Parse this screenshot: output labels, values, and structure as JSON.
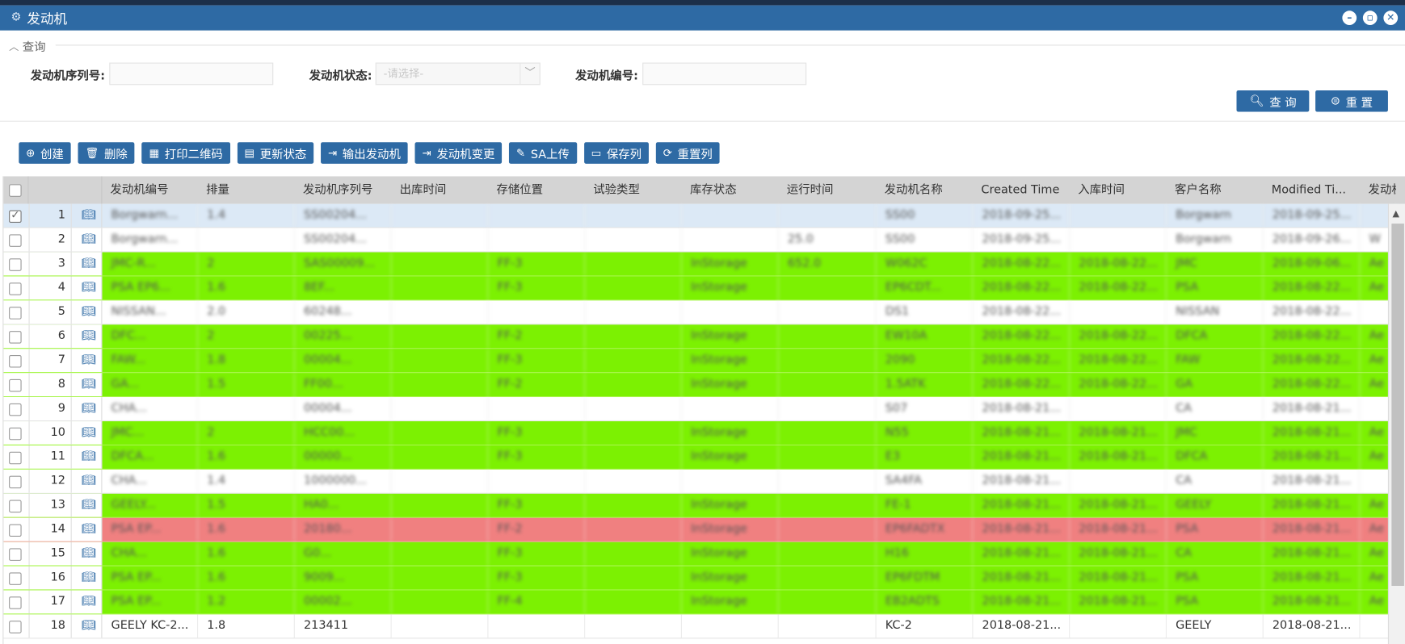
{
  "window": {
    "title": "发动机",
    "icons": [
      "engine-icon"
    ],
    "controls": [
      "minimize",
      "maximize",
      "close"
    ]
  },
  "query": {
    "section_label": "查询",
    "fields": {
      "serial_label": "发动机序列号:",
      "status_label": "发动机状态:",
      "status_placeholder": "-请选择-",
      "number_label": "发动机编号:"
    },
    "search_label": "查 询",
    "reset_label": "重 置"
  },
  "toolbar": {
    "create": "创建",
    "delete": "删除",
    "print_qr": "打印二维码",
    "update_status": "更新状态",
    "export": "输出发动机",
    "change": "发动机变更",
    "sa_upload": "SA上传",
    "save_cols": "保存列",
    "reset_cols": "重置列"
  },
  "grid": {
    "columns": [
      "发动机编号",
      "排量",
      "发动机序列号",
      "出库时间",
      "存储位置",
      "试验类型",
      "库存状态",
      "运行时间",
      "发动机名称",
      "Created Time",
      "入库时间",
      "客户名称",
      "Modified Ti...",
      "发动机"
    ],
    "rows": [
      {
        "num": "1",
        "color": "sel",
        "checked": true,
        "cells": [
          "Borgwarn...",
          "1.4",
          "SS00204...",
          "",
          "",
          "",
          "",
          "",
          "SS00",
          "2018-09-25...",
          "",
          "Borgwarn",
          "2018-09-25...",
          ""
        ]
      },
      {
        "num": "2",
        "color": "white",
        "checked": false,
        "cells": [
          "Borgwarn...",
          "",
          "SS00204...",
          "",
          "",
          "",
          "",
          "25.0",
          "SS00",
          "2018-09-25...",
          "",
          "Borgwarn",
          "2018-09-26...",
          "W"
        ]
      },
      {
        "num": "3",
        "color": "green",
        "checked": false,
        "cells": [
          "JMC-R...",
          "2",
          "SAS00009...",
          "",
          "FF-3",
          "",
          "InStorage",
          "652.0",
          "W062C",
          "2018-08-22...",
          "2018-08-22...",
          "JMC",
          "2018-09-06...",
          "Ae"
        ]
      },
      {
        "num": "4",
        "color": "green",
        "checked": false,
        "cells": [
          "PSA EP6...",
          "1.6",
          "8EF...",
          "",
          "FF-3",
          "",
          "InStorage",
          "",
          "EP6CDT...",
          "2018-08-22...",
          "2018-08-22...",
          "PSA",
          "2018-08-22...",
          "Ae"
        ]
      },
      {
        "num": "5",
        "color": "white",
        "checked": false,
        "cells": [
          "NISSAN...",
          "2.0",
          "60248...",
          "",
          "",
          "",
          "",
          "",
          "DS1",
          "2018-08-22...",
          "",
          "NISSAN",
          "2018-08-22...",
          ""
        ]
      },
      {
        "num": "6",
        "color": "green",
        "checked": false,
        "cells": [
          "DFC...",
          "2",
          "00225...",
          "",
          "FF-2",
          "",
          "InStorage",
          "",
          "EW10A",
          "2018-08-22...",
          "2018-08-22...",
          "DFCA",
          "2018-08-22...",
          "Ae"
        ]
      },
      {
        "num": "7",
        "color": "green",
        "checked": false,
        "cells": [
          "FAW...",
          "1.8",
          "00004...",
          "",
          "FF-3",
          "",
          "InStorage",
          "",
          "2090",
          "2018-08-22...",
          "2018-08-22...",
          "FAW",
          "2018-08-22...",
          "Ae"
        ]
      },
      {
        "num": "8",
        "color": "green",
        "checked": false,
        "cells": [
          "GA...",
          "1.5",
          "FF00...",
          "",
          "FF-2",
          "",
          "InStorage",
          "",
          "1.5ATK",
          "2018-08-22...",
          "2018-08-22...",
          "GA",
          "2018-08-22...",
          "Ae"
        ]
      },
      {
        "num": "9",
        "color": "white",
        "checked": false,
        "cells": [
          "CHA...",
          "",
          "00004...",
          "",
          "",
          "",
          "",
          "",
          "S07",
          "2018-08-21...",
          "",
          "CA",
          "2018-08-21...",
          ""
        ]
      },
      {
        "num": "10",
        "color": "green",
        "checked": false,
        "cells": [
          "JMC...",
          "2",
          "HCC00...",
          "",
          "FF-3",
          "",
          "InStorage",
          "",
          "N55",
          "2018-08-21...",
          "2018-08-21...",
          "JMC",
          "2018-08-21...",
          "Ae"
        ]
      },
      {
        "num": "11",
        "color": "green",
        "checked": false,
        "cells": [
          "DFCA...",
          "1.6",
          "00000...",
          "",
          "FF-3",
          "",
          "InStorage",
          "",
          "E3",
          "2018-08-21...",
          "2018-08-21...",
          "DFCA",
          "2018-08-21...",
          "Ae"
        ]
      },
      {
        "num": "12",
        "color": "white",
        "checked": false,
        "cells": [
          "CHA...",
          "1.4",
          "1000000...",
          "",
          "",
          "",
          "",
          "",
          "SA4FA",
          "2018-08-21...",
          "",
          "CA",
          "2018-08-21...",
          ""
        ]
      },
      {
        "num": "13",
        "color": "green",
        "checked": false,
        "cells": [
          "GEELY...",
          "1.5",
          "HA0...",
          "",
          "FF-3",
          "",
          "InStorage",
          "",
          "FE-1",
          "2018-08-21...",
          "2018-08-21...",
          "GEELY",
          "2018-08-21...",
          "Ae"
        ]
      },
      {
        "num": "14",
        "color": "red",
        "checked": false,
        "cells": [
          "PSA EP...",
          "1.6",
          "20180...",
          "",
          "FF-2",
          "",
          "InStorage",
          "",
          "EP6FADTX",
          "2018-08-21...",
          "2018-08-21...",
          "PSA",
          "2018-08-21...",
          "Ae"
        ]
      },
      {
        "num": "15",
        "color": "green",
        "checked": false,
        "cells": [
          "CHA...",
          "1.6",
          "G0...",
          "",
          "FF-3",
          "",
          "InStorage",
          "",
          "H16",
          "2018-08-21...",
          "2018-08-21...",
          "CA",
          "2018-08-21...",
          "Ae"
        ]
      },
      {
        "num": "16",
        "color": "green",
        "checked": false,
        "cells": [
          "PSA EP...",
          "1.6",
          "9009...",
          "",
          "FF-3",
          "",
          "InStorage",
          "",
          "EP6FDTM",
          "2018-08-21...",
          "2018-08-21...",
          "PSA",
          "2018-08-21...",
          "Ae"
        ]
      },
      {
        "num": "17",
        "color": "green",
        "checked": false,
        "cells": [
          "PSA EP...",
          "1.2",
          "00002...",
          "",
          "FF-4",
          "",
          "InStorage",
          "",
          "EB2ADTS",
          "2018-08-21...",
          "2018-08-21...",
          "PSA",
          "2018-08-21...",
          "Ae"
        ]
      },
      {
        "num": "18",
        "color": "white",
        "checked": false,
        "clear": true,
        "cells": [
          "GEELY KC-2...",
          "1.8",
          "213411",
          "",
          "",
          "",
          "",
          "",
          "KC-2",
          "2018-08-21...",
          "",
          "GEELY",
          "2018-08-21...",
          ""
        ]
      }
    ]
  },
  "colors": {
    "titlebar": "#2e6aa4",
    "green_row": "#7cf102",
    "red_row": "#f08080",
    "header": "#d4d4d4"
  }
}
